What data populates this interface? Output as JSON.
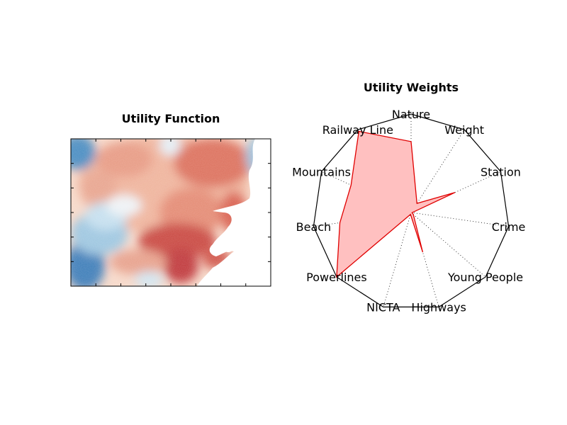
{
  "chart_data": [
    {
      "type": "heatmap",
      "title": "Utility Function",
      "colormap": "RdBu (red = high utility, blue = low utility, white = masked/ocean)",
      "grid": false
    },
    {
      "type": "radar",
      "title": "Utility Weights",
      "categories": [
        "Nature",
        "Weight",
        "Station",
        "Crime",
        "Young People",
        "Highways",
        "NICTA",
        "Powerlines",
        "Beach",
        "Mountains",
        "Railway Line"
      ],
      "values": [
        0.72,
        0.11,
        0.49,
        0.01,
        0.03,
        0.42,
        0.02,
        1.0,
        0.73,
        0.67,
        0.98
      ],
      "rlim": [
        0,
        1
      ],
      "fill_color": "#ffc0c0",
      "line_color": "#e00000",
      "frame_color": "#000000",
      "grid": true
    }
  ]
}
